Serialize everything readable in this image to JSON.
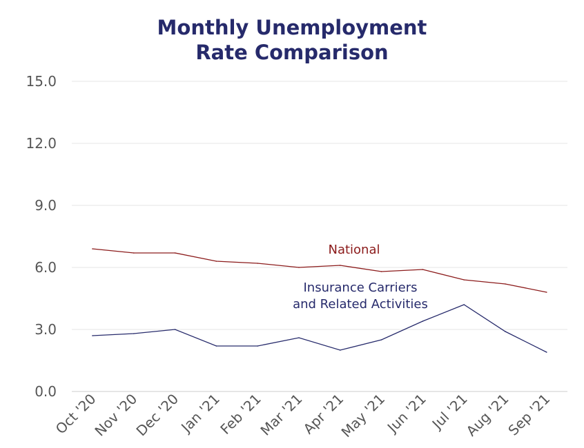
{
  "chart_data": {
    "type": "line",
    "title_lines": [
      "Monthly Unemployment",
      "Rate Comparison"
    ],
    "categories": [
      "Oct '20",
      "Nov '20",
      "Dec '20",
      "Jan '21",
      "Feb '21",
      "Mar '21",
      "Apr '21",
      "May '21",
      "Jun '21",
      "Jul '21",
      "Aug '21",
      "Sep '21"
    ],
    "ylim": [
      0,
      15
    ],
    "yticks": [
      "0.0",
      "3.0",
      "6.0",
      "9.0",
      "12.0",
      "15.0"
    ],
    "grid": true,
    "series": [
      {
        "name": "National",
        "label_lines": [
          "National"
        ],
        "color": "#8b1a1a",
        "values": [
          6.9,
          6.7,
          6.7,
          6.3,
          6.2,
          6.0,
          6.1,
          5.8,
          5.9,
          5.4,
          5.2,
          4.8
        ]
      },
      {
        "name": "Insurance Carriers and Related Activities",
        "label_lines": [
          "Insurance Carriers",
          "and Related Activities"
        ],
        "color": "#262a6b",
        "values": [
          2.7,
          2.8,
          3.0,
          2.2,
          2.2,
          2.6,
          2.0,
          2.5,
          3.4,
          4.2,
          2.9,
          1.9
        ]
      }
    ]
  }
}
